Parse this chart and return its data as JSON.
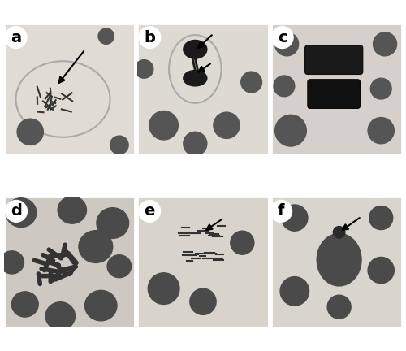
{
  "panels": [
    "a",
    "b",
    "c",
    "d",
    "e",
    "f"
  ],
  "panel_labels": [
    "a",
    "b",
    "c",
    "d",
    "e",
    "f"
  ],
  "label_fontsize": 14,
  "label_fontweight": "bold",
  "label_color": "black",
  "label_bg_color": "white",
  "background_color": "#d8d0c8",
  "border_color": "white",
  "border_width": 2,
  "fig_width": 5.0,
  "fig_height": 4.32,
  "dpi": 100,
  "grid_rows": 2,
  "grid_cols": 3,
  "panel_bg_colors": [
    "#e0dbd4",
    "#dddad4",
    "#d5d0cc",
    "#cdc9c2",
    "#d8d4cc",
    "#d8d4ce"
  ],
  "arrow_color": "black",
  "cell_color": "#888888",
  "nucleus_color": "#555555"
}
